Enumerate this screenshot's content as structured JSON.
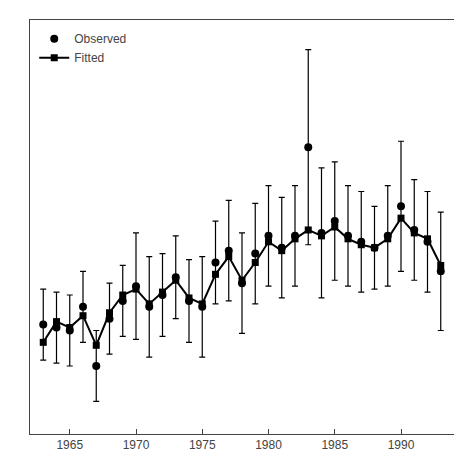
{
  "chart_data": {
    "type": "line",
    "x": [
      1963,
      1964,
      1965,
      1966,
      1967,
      1968,
      1969,
      1970,
      1971,
      1972,
      1973,
      1974,
      1975,
      1976,
      1977,
      1978,
      1979,
      1980,
      1981,
      1982,
      1983,
      1984,
      1985,
      1986,
      1987,
      1988,
      1989,
      1990,
      1991,
      1992,
      1993
    ],
    "series": [
      {
        "name": "Observed",
        "color": "#000000",
        "marker": "circle",
        "line_style": "none",
        "values": [
          0.42,
          0.41,
          0.4,
          0.48,
          0.28,
          0.44,
          0.5,
          0.55,
          0.48,
          0.52,
          0.58,
          0.5,
          0.48,
          0.63,
          0.67,
          0.56,
          0.66,
          0.72,
          0.68,
          0.72,
          1.02,
          0.73,
          0.77,
          0.72,
          0.7,
          0.68,
          0.72,
          0.82,
          0.74,
          0.7,
          0.6
        ],
        "error": [
          0.12,
          0.12,
          0.12,
          0.12,
          0.12,
          0.12,
          0.12,
          0.18,
          0.17,
          0.14,
          0.14,
          0.14,
          0.17,
          0.14,
          0.17,
          0.17,
          0.17,
          0.17,
          0.17,
          0.17,
          0.33,
          0.22,
          0.2,
          0.17,
          0.17,
          0.14,
          0.17,
          0.22,
          0.17,
          0.17,
          0.2
        ]
      },
      {
        "name": "Fitted",
        "color": "#000000",
        "marker": "square",
        "line_style": "solid",
        "values": [
          0.36,
          0.43,
          0.41,
          0.45,
          0.35,
          0.46,
          0.52,
          0.54,
          0.49,
          0.53,
          0.57,
          0.51,
          0.49,
          0.59,
          0.65,
          0.57,
          0.63,
          0.7,
          0.67,
          0.71,
          0.74,
          0.72,
          0.75,
          0.71,
          0.69,
          0.68,
          0.71,
          0.78,
          0.73,
          0.71,
          0.62
        ]
      }
    ],
    "xlim": [
      1962.0,
      1994.0
    ],
    "ylim": [
      0.05,
      1.45
    ],
    "xticks": [
      1965,
      1970,
      1975,
      1980,
      1985,
      1990
    ],
    "tick_labels": "x",
    "grid": false,
    "legend": "upper left"
  }
}
